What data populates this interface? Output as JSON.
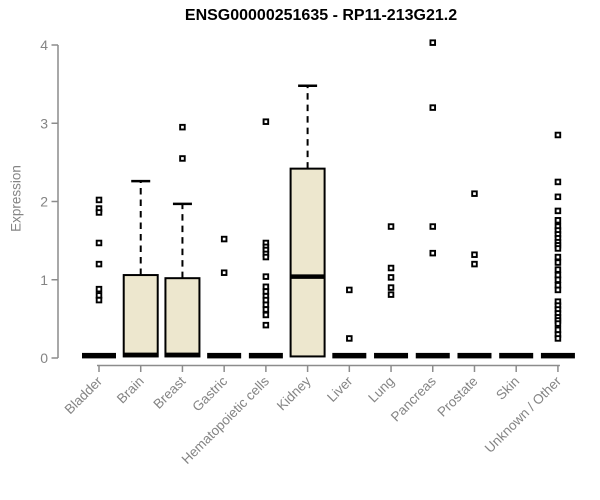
{
  "chart_data": {
    "type": "boxplot",
    "title": "ENSG00000251635 - RP11-213G21.2",
    "ylabel": "Expression",
    "xlabel": "",
    "ylim": [
      0,
      4
    ],
    "yticks": [
      0,
      1,
      2,
      3,
      4
    ],
    "grid": false,
    "legend": "none",
    "colors": {
      "box_fill": "#EDE7CE",
      "box_stroke": "#000000",
      "median": "#000000",
      "outlier": "#000000",
      "axis": "#8C8C8C",
      "label": "#848484",
      "title": "#000000",
      "background": "#FFFFFF"
    },
    "categories": [
      "Bladder",
      "Brain",
      "Breast",
      "Gastric",
      "Hematopoietic cells",
      "Kidney",
      "Liver",
      "Lung",
      "Pancreas",
      "Prostate",
      "Skin",
      "Unknown / Other"
    ],
    "series": [
      {
        "category": "Bladder",
        "collapsed": true,
        "median": 0.03,
        "outliers": [
          2.02,
          1.91,
          1.86,
          1.47,
          1.2,
          0.88,
          0.8,
          0.74
        ]
      },
      {
        "category": "Brain",
        "collapsed": false,
        "q1": 0.02,
        "median": 0.04,
        "q3": 1.06,
        "whisker_low": 0,
        "whisker_high": 2.26,
        "outliers": []
      },
      {
        "category": "Breast",
        "collapsed": false,
        "q1": 0.02,
        "median": 0.04,
        "q3": 1.02,
        "whisker_low": 0,
        "whisker_high": 1.97,
        "outliers": [
          2.95,
          2.55
        ]
      },
      {
        "category": "Gastric",
        "collapsed": true,
        "median": 0.03,
        "outliers": [
          1.52,
          1.09
        ]
      },
      {
        "category": "Hematopoietic cells",
        "collapsed": true,
        "median": 0.03,
        "outliers": [
          3.02,
          1.47,
          1.42,
          1.38,
          1.33,
          1.29,
          1.04,
          0.91,
          0.85,
          0.79,
          0.74,
          0.68,
          0.62,
          0.55,
          0.42
        ]
      },
      {
        "category": "Kidney",
        "collapsed": false,
        "q1": 0.02,
        "median": 1.04,
        "q3": 2.42,
        "whisker_low": 0,
        "whisker_high": 3.48,
        "outliers": []
      },
      {
        "category": "Liver",
        "collapsed": true,
        "median": 0.03,
        "outliers": [
          0.87,
          0.25
        ]
      },
      {
        "category": "Lung",
        "collapsed": true,
        "median": 0.03,
        "outliers": [
          1.68,
          1.15,
          1.03,
          0.9,
          0.81
        ]
      },
      {
        "category": "Pancreas",
        "collapsed": true,
        "median": 0.03,
        "outliers": [
          4.03,
          3.2,
          1.68,
          1.34
        ]
      },
      {
        "category": "Prostate",
        "collapsed": true,
        "median": 0.03,
        "outliers": [
          2.1,
          1.32,
          1.2
        ]
      },
      {
        "category": "Skin",
        "collapsed": true,
        "median": 0.03,
        "outliers": []
      },
      {
        "category": "Unknown / Other",
        "collapsed": true,
        "median": 0.03,
        "outliers": [
          2.85,
          2.25,
          2.06,
          1.88,
          1.76,
          1.68,
          1.63,
          1.58,
          1.53,
          1.48,
          1.44,
          1.4,
          1.29,
          1.22,
          1.13,
          1.06,
          1.0,
          0.93,
          0.87,
          0.72,
          0.67,
          0.62,
          0.57,
          0.52,
          0.48,
          0.44,
          0.36,
          0.3,
          0.25
        ]
      }
    ]
  }
}
